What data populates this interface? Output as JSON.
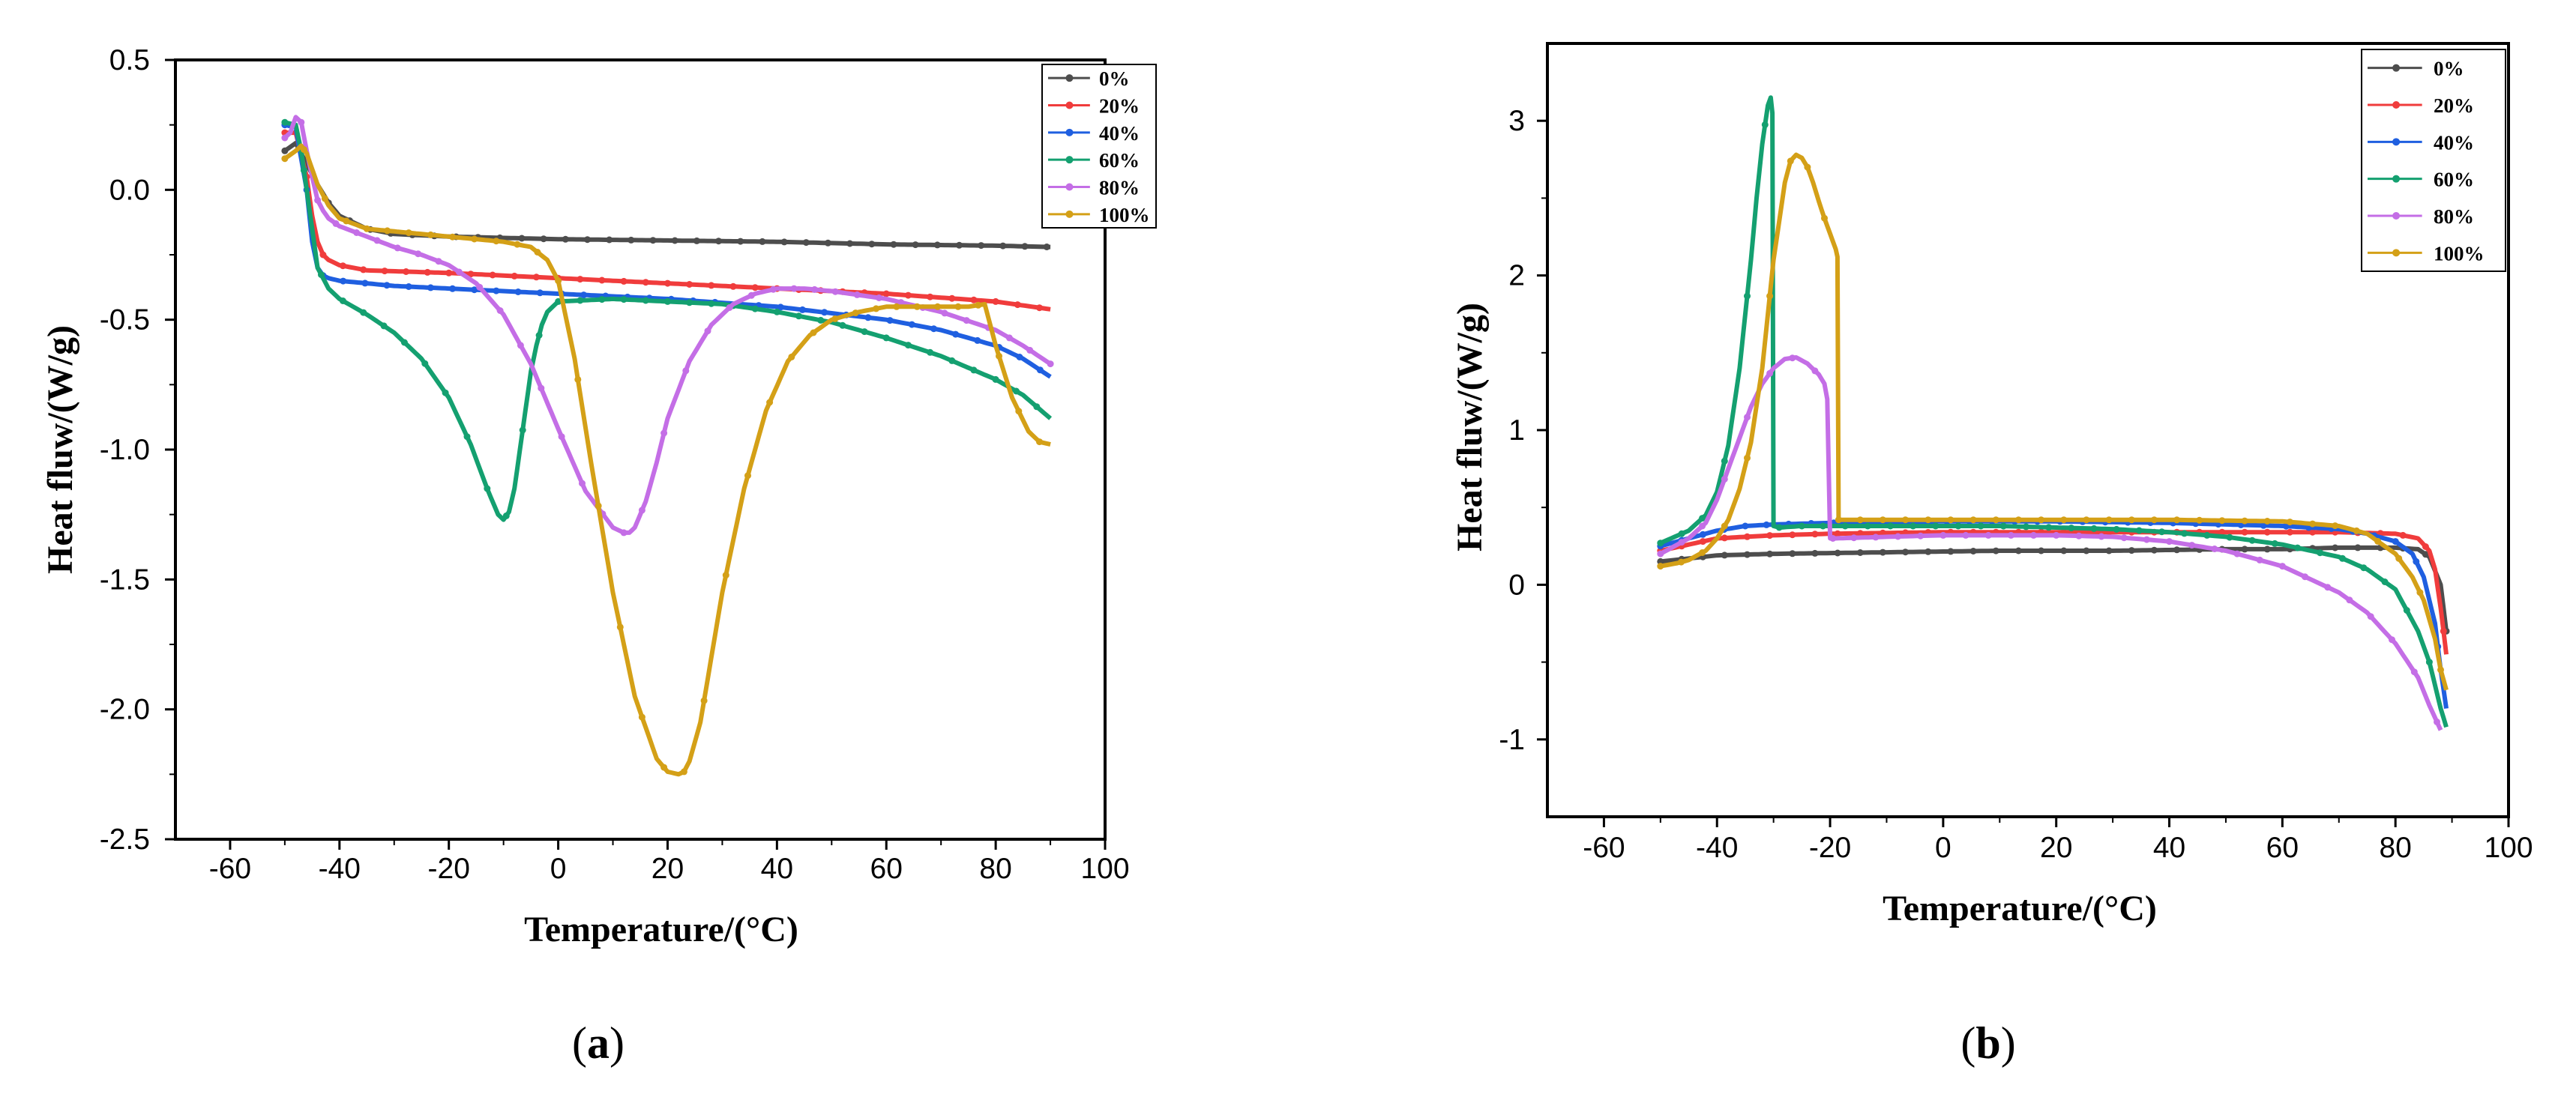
{
  "colors": {
    "0%": "#4d4d4d",
    "20%": "#f03c3c",
    "40%": "#1f5fe0",
    "60%": "#14a070",
    "80%": "#c46ee6",
    "100%": "#d4a017"
  },
  "panels": [
    {
      "open": "(",
      "letter": "a",
      "close": ")"
    },
    {
      "open": "(",
      "letter": "b",
      "close": ")"
    }
  ],
  "chart_data": [
    {
      "type": "line",
      "id": "a",
      "xlabel": "Temperature/(°C)",
      "ylabel": "Heat fluw/(W/g)",
      "xlim": [
        -70,
        100
      ],
      "ylim": [
        -2.5,
        0.5
      ],
      "xticks": [
        -60,
        -40,
        -20,
        0,
        20,
        40,
        60,
        80,
        100
      ],
      "xtick_labels": [
        "-60",
        "-40",
        "-20",
        "0",
        "20",
        "40",
        "60",
        "80",
        "100"
      ],
      "yticks": [
        0.5,
        0.0,
        -0.5,
        -1.0,
        -1.5,
        -2.0,
        -2.5
      ],
      "ytick_labels": [
        "0.5",
        "0.0",
        "-0.5",
        "-1.0",
        "-1.5",
        "-2.0",
        "-2.5"
      ],
      "legend_position": "top-right",
      "series": [
        {
          "name": "0%",
          "x": [
            -50,
            -48,
            -46,
            -44,
            -42,
            -40,
            -35,
            -30,
            -20,
            0,
            20,
            40,
            60,
            80,
            90
          ],
          "y": [
            0.15,
            0.18,
            0.1,
            0.02,
            -0.05,
            -0.1,
            -0.15,
            -0.17,
            -0.18,
            -0.19,
            -0.195,
            -0.2,
            -0.21,
            -0.215,
            -0.22
          ]
        },
        {
          "name": "20%",
          "x": [
            -50,
            -48,
            -46,
            -45,
            -44,
            -43,
            -42,
            -40,
            -35,
            -20,
            0,
            20,
            40,
            60,
            80,
            90
          ],
          "y": [
            0.22,
            0.22,
            0.05,
            -0.1,
            -0.2,
            -0.25,
            -0.27,
            -0.29,
            -0.31,
            -0.32,
            -0.34,
            -0.36,
            -0.38,
            -0.4,
            -0.43,
            -0.46
          ]
        },
        {
          "name": "40%",
          "x": [
            -50,
            -48,
            -46,
            -45,
            -44,
            -43,
            -42,
            -40,
            -30,
            -20,
            0,
            20,
            40,
            60,
            70,
            80,
            85,
            90
          ],
          "y": [
            0.25,
            0.24,
            0.0,
            -0.2,
            -0.3,
            -0.33,
            -0.34,
            -0.35,
            -0.37,
            -0.38,
            -0.4,
            -0.42,
            -0.45,
            -0.5,
            -0.54,
            -0.6,
            -0.65,
            -0.72
          ]
        },
        {
          "name": "60%",
          "x": [
            -50,
            -48,
            -47,
            -46,
            -45,
            -44,
            -42,
            -40,
            -35,
            -30,
            -25,
            -20,
            -16,
            -13,
            -11,
            -10,
            -9,
            -8,
            -7,
            -6,
            -5,
            -4,
            -3,
            -2,
            0,
            10,
            20,
            30,
            40,
            50,
            60,
            70,
            80,
            85,
            90
          ],
          "y": [
            0.26,
            0.25,
            0.15,
            0.0,
            -0.15,
            -0.3,
            -0.38,
            -0.42,
            -0.48,
            -0.55,
            -0.65,
            -0.8,
            -0.98,
            -1.15,
            -1.25,
            -1.27,
            -1.24,
            -1.15,
            -1.0,
            -0.85,
            -0.7,
            -0.6,
            -0.52,
            -0.47,
            -0.43,
            -0.42,
            -0.43,
            -0.44,
            -0.47,
            -0.51,
            -0.57,
            -0.64,
            -0.73,
            -0.79,
            -0.88
          ]
        },
        {
          "name": "80%",
          "x": [
            -50,
            -49,
            -48,
            -47,
            -46,
            -45,
            -44,
            -43,
            -42,
            -40,
            -35,
            -30,
            -25,
            -20,
            -15,
            -10,
            -5,
            0,
            5,
            10,
            12,
            13,
            14,
            16,
            18,
            20,
            24,
            28,
            32,
            36,
            40,
            45,
            50,
            60,
            70,
            80,
            85,
            90
          ],
          "y": [
            0.2,
            0.22,
            0.28,
            0.26,
            0.15,
            0.05,
            -0.04,
            -0.08,
            -0.11,
            -0.14,
            -0.18,
            -0.22,
            -0.25,
            -0.29,
            -0.36,
            -0.48,
            -0.67,
            -0.92,
            -1.16,
            -1.3,
            -1.32,
            -1.32,
            -1.3,
            -1.2,
            -1.05,
            -0.88,
            -0.66,
            -0.52,
            -0.44,
            -0.4,
            -0.38,
            -0.38,
            -0.39,
            -0.42,
            -0.47,
            -0.54,
            -0.6,
            -0.67
          ]
        },
        {
          "name": "100%",
          "x": [
            -50,
            -48,
            -47,
            -46,
            -44,
            -42,
            -40,
            -35,
            -30,
            -20,
            -10,
            -5,
            -2,
            0,
            3,
            6,
            10,
            14,
            18,
            20,
            22,
            23,
            24,
            26,
            28,
            30,
            34,
            38,
            42,
            46,
            50,
            55,
            60,
            65,
            70,
            75,
            78,
            80,
            83,
            86,
            88,
            90
          ],
          "y": [
            0.12,
            0.15,
            0.17,
            0.14,
            0.02,
            -0.06,
            -0.11,
            -0.15,
            -0.16,
            -0.18,
            -0.2,
            -0.22,
            -0.27,
            -0.35,
            -0.65,
            -1.05,
            -1.55,
            -1.95,
            -2.19,
            -2.24,
            -2.25,
            -2.24,
            -2.2,
            -2.05,
            -1.8,
            -1.55,
            -1.15,
            -0.85,
            -0.66,
            -0.56,
            -0.5,
            -0.47,
            -0.45,
            -0.45,
            -0.45,
            -0.45,
            -0.44,
            -0.6,
            -0.8,
            -0.93,
            -0.97,
            -0.98
          ]
        }
      ]
    },
    {
      "type": "line",
      "id": "b",
      "xlabel": "Temperature/(°C)",
      "ylabel": "Heat fluw/(W/g)",
      "xlim": [
        -70,
        100
      ],
      "ylim": [
        -1.5,
        3.5
      ],
      "xticks": [
        -60,
        -40,
        -20,
        0,
        20,
        40,
        60,
        80,
        100
      ],
      "xtick_labels": [
        "-60",
        "-40",
        "-20",
        "0",
        "20",
        "40",
        "60",
        "80",
        "100"
      ],
      "yticks": [
        3,
        2,
        1,
        0,
        -1
      ],
      "ytick_labels": [
        "3",
        "2",
        "1",
        "0",
        "-1"
      ],
      "legend_position": "top-right",
      "series": [
        {
          "name": "0%",
          "x": [
            -50,
            -45,
            -40,
            -30,
            -10,
            10,
            30,
            50,
            60,
            70,
            80,
            84,
            86,
            88,
            89
          ],
          "y": [
            0.15,
            0.17,
            0.19,
            0.2,
            0.21,
            0.22,
            0.22,
            0.23,
            0.23,
            0.24,
            0.24,
            0.23,
            0.18,
            0.0,
            -0.3
          ]
        },
        {
          "name": "20%",
          "x": [
            -50,
            -45,
            -40,
            -30,
            -20,
            0,
            20,
            40,
            60,
            70,
            80,
            84,
            86,
            87,
            88,
            89
          ],
          "y": [
            0.22,
            0.26,
            0.3,
            0.32,
            0.33,
            0.34,
            0.34,
            0.34,
            0.34,
            0.34,
            0.33,
            0.3,
            0.22,
            0.1,
            -0.15,
            -0.45
          ]
        },
        {
          "name": "40%",
          "x": [
            -50,
            -45,
            -40,
            -35,
            -30,
            -20,
            0,
            20,
            40,
            60,
            70,
            75,
            80,
            83,
            85,
            87,
            88,
            89
          ],
          "y": [
            0.25,
            0.3,
            0.35,
            0.38,
            0.39,
            0.4,
            0.41,
            0.41,
            0.4,
            0.38,
            0.36,
            0.33,
            0.28,
            0.2,
            0.05,
            -0.25,
            -0.55,
            -0.8
          ]
        },
        {
          "name": "60%",
          "x": [
            -50,
            -45,
            -42,
            -40,
            -38,
            -36,
            -34,
            -33,
            -32,
            -31,
            -30.5,
            -30.2,
            -30,
            -29,
            -25,
            -20,
            -10,
            0,
            10,
            20,
            30,
            40,
            50,
            60,
            70,
            75,
            80,
            84,
            86,
            88,
            89
          ],
          "y": [
            0.27,
            0.35,
            0.45,
            0.6,
            0.9,
            1.4,
            2.1,
            2.5,
            2.85,
            3.1,
            3.15,
            3.05,
            0.38,
            0.37,
            0.38,
            0.38,
            0.38,
            0.38,
            0.38,
            0.37,
            0.36,
            0.34,
            0.31,
            0.26,
            0.18,
            0.1,
            -0.03,
            -0.3,
            -0.5,
            -0.8,
            -0.92
          ]
        },
        {
          "name": "80%",
          "x": [
            -50,
            -45,
            -42,
            -40,
            -38,
            -36,
            -34,
            -32,
            -30,
            -28,
            -26,
            -24,
            -22,
            -21,
            -20.5,
            -20,
            -19,
            -10,
            0,
            10,
            20,
            30,
            40,
            50,
            60,
            70,
            75,
            80,
            84,
            86,
            88
          ],
          "y": [
            0.2,
            0.3,
            0.4,
            0.55,
            0.75,
            0.95,
            1.15,
            1.3,
            1.4,
            1.46,
            1.47,
            1.43,
            1.36,
            1.3,
            1.2,
            0.3,
            0.3,
            0.31,
            0.32,
            0.32,
            0.32,
            0.31,
            0.28,
            0.22,
            0.12,
            -0.05,
            -0.18,
            -0.38,
            -0.6,
            -0.78,
            -0.94
          ]
        },
        {
          "name": "100%",
          "x": [
            -50,
            -47,
            -45,
            -42,
            -40,
            -38,
            -36,
            -34,
            -32,
            -30,
            -28,
            -27,
            -26,
            -25,
            -24,
            -23,
            -22,
            -21,
            -20,
            -19,
            -18.7,
            -18.5,
            -18,
            -10,
            0,
            20,
            40,
            60,
            70,
            75,
            80,
            83,
            85,
            87,
            88,
            89
          ],
          "y": [
            0.12,
            0.14,
            0.16,
            0.22,
            0.3,
            0.42,
            0.62,
            0.92,
            1.4,
            2.1,
            2.6,
            2.74,
            2.78,
            2.76,
            2.7,
            2.6,
            2.48,
            2.37,
            2.27,
            2.17,
            2.12,
            0.42,
            0.42,
            0.42,
            0.42,
            0.42,
            0.42,
            0.41,
            0.38,
            0.33,
            0.2,
            0.05,
            -0.1,
            -0.35,
            -0.55,
            -0.68
          ]
        }
      ]
    }
  ]
}
